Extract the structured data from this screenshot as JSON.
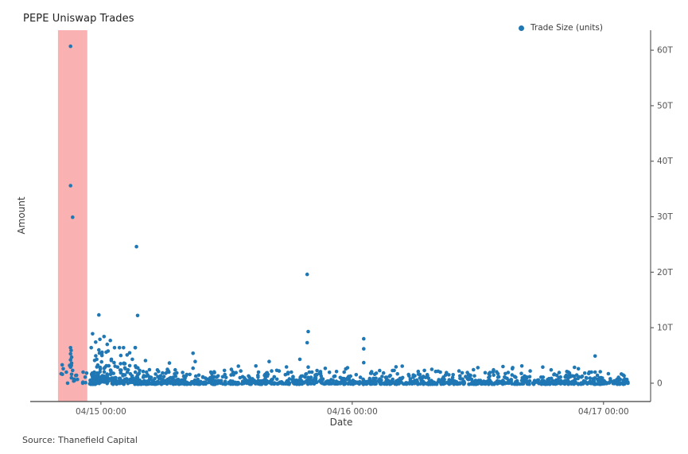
{
  "title": "PEPE Uniswap Trades",
  "legend": {
    "label": "Trade Size (units)",
    "marker_color": "#1f77b4",
    "position": "top-right"
  },
  "source": "Source: Thanefield Capital",
  "colors": {
    "dot": "#1f77b4",
    "highlight_band": "#fab1b1",
    "axis_line": "#5f5f5f",
    "tick_text": "#535353",
    "title_text": "#222222"
  },
  "chart_data": {
    "type": "scatter",
    "title": "PEPE Uniswap Trades",
    "xlabel": "Date",
    "ylabel": "Amount",
    "series_name": "Trade Size (units)",
    "x_unit": "hours since 04/14 00:00",
    "y_unit": "trillions of units (T)",
    "x_range": [
      17.4,
      76.5
    ],
    "y_range": [
      -3.3,
      63.6
    ],
    "grid": false,
    "y_axis_side": "right",
    "x_ticks": [
      {
        "t": 24,
        "label": "04/15 00:00"
      },
      {
        "t": 48,
        "label": "04/16 00:00"
      },
      {
        "t": 72,
        "label": "04/17 00:00"
      }
    ],
    "y_ticks": [
      {
        "v": 0,
        "label": "0"
      },
      {
        "v": 10,
        "label": "10T"
      },
      {
        "v": 20,
        "label": "20T"
      },
      {
        "v": 30,
        "label": "30T"
      },
      {
        "v": 40,
        "label": "40T"
      },
      {
        "v": 50,
        "label": "50T"
      },
      {
        "v": 60,
        "label": "60T"
      }
    ],
    "highlight_band": {
      "t_start": 19.9,
      "t_end": 22.7,
      "color": "#fab1b1"
    },
    "outliers": [
      [
        21.1,
        60.7
      ],
      [
        21.1,
        35.6
      ],
      [
        21.3,
        29.9
      ],
      [
        27.4,
        24.6
      ],
      [
        43.7,
        19.6
      ],
      [
        23.8,
        12.3
      ],
      [
        27.5,
        12.2
      ],
      [
        43.8,
        9.3
      ],
      [
        43.7,
        7.3
      ],
      [
        49.1,
        8.0
      ],
      [
        49.1,
        6.2
      ],
      [
        49.1,
        3.7
      ],
      [
        71.2,
        4.9
      ],
      [
        71.2,
        2.0
      ],
      [
        21.1,
        6.4
      ],
      [
        21.15,
        5.9
      ],
      [
        21.1,
        5.3
      ],
      [
        21.2,
        4.7
      ],
      [
        21.1,
        4.2
      ],
      [
        21.2,
        3.6
      ],
      [
        21.1,
        2.9
      ],
      [
        21.3,
        2.3
      ],
      [
        21.2,
        1.6
      ],
      [
        20.3,
        3.3
      ],
      [
        20.4,
        2.6
      ],
      [
        20.2,
        1.7
      ],
      [
        20.7,
        2.0
      ],
      [
        21.6,
        1.4
      ],
      [
        22.3,
        2.0
      ],
      [
        22.5,
        1.1
      ],
      [
        23.2,
        8.9
      ],
      [
        23.5,
        7.4
      ],
      [
        24.3,
        8.4
      ],
      [
        23.9,
        7.9
      ],
      [
        24.6,
        7.0
      ],
      [
        24.9,
        7.7
      ],
      [
        25.3,
        6.4
      ],
      [
        24.5,
        5.6
      ],
      [
        24.1,
        5.0
      ],
      [
        23.6,
        4.3
      ],
      [
        25.0,
        4.3
      ],
      [
        25.9,
        5.0
      ],
      [
        26.2,
        3.6
      ],
      [
        25.6,
        2.9
      ],
      [
        26.6,
        2.4
      ],
      [
        27.0,
        4.3
      ],
      [
        27.3,
        3.1
      ],
      [
        27.7,
        2.3
      ],
      [
        23.8,
        6.0
      ],
      [
        32.8,
        5.4
      ],
      [
        33.0,
        3.9
      ],
      [
        32.8,
        2.7
      ],
      [
        31.1,
        2.4
      ],
      [
        43.0,
        4.3
      ],
      [
        38.8,
        3.1
      ],
      [
        43.8,
        2.9
      ],
      [
        36.9,
        1.9
      ],
      [
        40.3,
        2.2
      ],
      [
        46.5,
        2.1
      ],
      [
        52.0,
        2.3
      ],
      [
        55.6,
        2.5
      ],
      [
        58.2,
        2.2
      ],
      [
        60.0,
        2.8
      ],
      [
        61.5,
        2.4
      ],
      [
        62.4,
        3.0
      ],
      [
        63.3,
        2.6
      ],
      [
        64.2,
        3.1
      ],
      [
        65.0,
        2.2
      ],
      [
        66.2,
        2.9
      ],
      [
        67.0,
        2.4
      ],
      [
        68.5,
        2.1
      ],
      [
        69.6,
        2.6
      ],
      [
        57.0,
        1.9
      ],
      [
        50.3,
        1.8
      ],
      [
        34.5,
        2.0
      ],
      [
        35.8,
        2.3
      ],
      [
        29.5,
        2.1
      ],
      [
        30.2,
        1.8
      ]
    ],
    "noise_layers": [
      {
        "name": "dense-bottom",
        "seed": 11,
        "count": 1150,
        "t_min": 22.9,
        "t_max": 74.4,
        "v_base": -0.2,
        "v_mean": 0.5,
        "v_cap": 2.2
      },
      {
        "name": "mid-sparse",
        "seed": 22,
        "count": 130,
        "t_min": 23.2,
        "t_max": 74.0,
        "v_base": 1.0,
        "v_mean": 0.85,
        "v_cap": 2.9
      },
      {
        "name": "left-cluster",
        "seed": 33,
        "count": 100,
        "t_min": 23.0,
        "t_mean_span": 2.4,
        "t_cap": 9.0,
        "v_base": 0.2,
        "v_mean": 1.6,
        "v_cap": 6.2
      },
      {
        "name": "in-band",
        "seed": 44,
        "count": 14,
        "t_min": 20.1,
        "t_max": 22.7,
        "v_base": 0.0,
        "v_mean": 1.0,
        "v_cap": 3.2
      }
    ]
  }
}
